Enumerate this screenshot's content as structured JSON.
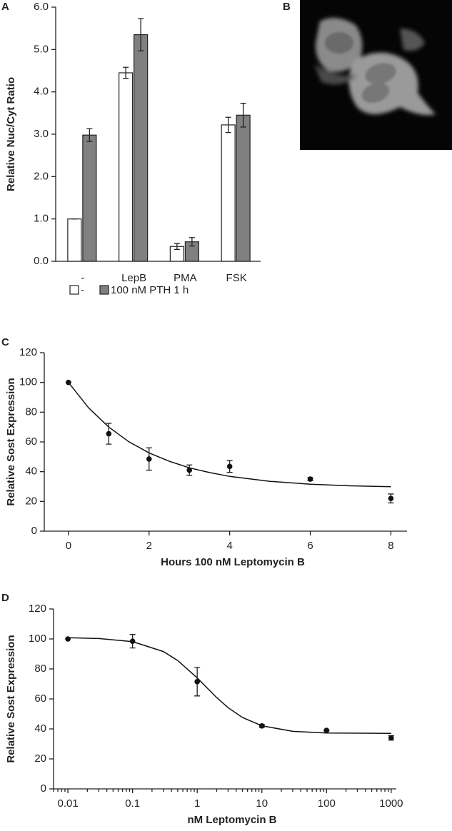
{
  "chart_data": [
    {
      "type": "bar",
      "panel_label": "A",
      "y_label": "Relative Nuc/Cyt Ratio",
      "categories": [
        "-",
        "LepB",
        "PMA",
        "FSK"
      ],
      "series": [
        {
          "name": "-",
          "color": "#ffffff",
          "values": [
            1.0,
            4.45,
            0.35,
            3.22
          ],
          "errors": [
            0,
            0.13,
            0.07,
            0.18
          ]
        },
        {
          "name": "100 nM PTH 1 h",
          "color": "#808080",
          "values": [
            2.98,
            5.35,
            0.46,
            3.45
          ],
          "errors": [
            0.15,
            0.38,
            0.1,
            0.28
          ]
        }
      ],
      "ylim": [
        0,
        6
      ],
      "yticks": [
        {
          "value": 0,
          "label": "0.0"
        },
        {
          "value": 1,
          "label": "1.0"
        },
        {
          "value": 2,
          "label": "2.0"
        },
        {
          "value": 3,
          "label": "3.0"
        },
        {
          "value": 4,
          "label": "4.0"
        },
        {
          "value": 5,
          "label": "5.0"
        },
        {
          "value": 6,
          "label": "6.0"
        }
      ],
      "legend": "bottom"
    },
    {
      "type": "scatter",
      "panel_label": "C",
      "x_label": "Hours 100 nM Leptomycin B",
      "y_label": "Relative Sost Expression",
      "x": [
        0,
        1,
        2,
        3,
        4,
        6,
        8
      ],
      "values": [
        100,
        65.5,
        48.5,
        41,
        43.5,
        35,
        22
      ],
      "errors": [
        0,
        7,
        7.5,
        3.5,
        4,
        1,
        3
      ],
      "color": "#111111",
      "curve": {
        "x": [
          0,
          0.5,
          1,
          1.5,
          2,
          2.5,
          3,
          3.5,
          4,
          5,
          6,
          7,
          8
        ],
        "values": [
          100,
          82.9,
          70,
          60.1,
          52.6,
          47,
          42.6,
          39.4,
          36.8,
          33.5,
          31.6,
          30.5,
          29.9
        ]
      },
      "xlim": [
        -0.6,
        8.4
      ],
      "xticks": [
        0,
        2,
        4,
        6,
        8
      ],
      "ylim": [
        0,
        120
      ],
      "yticks": [
        0,
        20,
        40,
        60,
        80,
        100,
        120
      ]
    },
    {
      "type": "scatter",
      "panel_label": "D",
      "x_label": "nM Leptomycin B",
      "y_label": "Relative Sost Expression",
      "x": [
        0.01,
        0.1,
        1,
        10,
        100,
        1000
      ],
      "values": [
        100,
        98.5,
        71.5,
        42,
        39,
        34
      ],
      "errors": [
        0,
        4.5,
        9.5,
        1,
        0.5,
        1.5
      ],
      "color": "#111111",
      "curve": {
        "x": [
          0.01,
          0.03,
          0.1,
          0.3,
          0.5,
          1,
          2,
          3,
          5,
          10,
          30,
          100,
          1000
        ],
        "values": [
          100.8,
          100.3,
          98.2,
          91.6,
          85.6,
          74,
          60.9,
          54.2,
          47.6,
          42.1,
          38.4,
          37.3,
          37
        ]
      },
      "xscale": "log",
      "minor_ticks": true,
      "xlim": [
        0.006,
        1200
      ],
      "xticks": [
        0.01,
        0.1,
        1,
        10,
        100,
        1000
      ],
      "ylim": [
        0,
        120
      ],
      "yticks": [
        0,
        20,
        40,
        60,
        80,
        100,
        120
      ]
    }
  ],
  "image_panel": {
    "panel_label": "B"
  }
}
